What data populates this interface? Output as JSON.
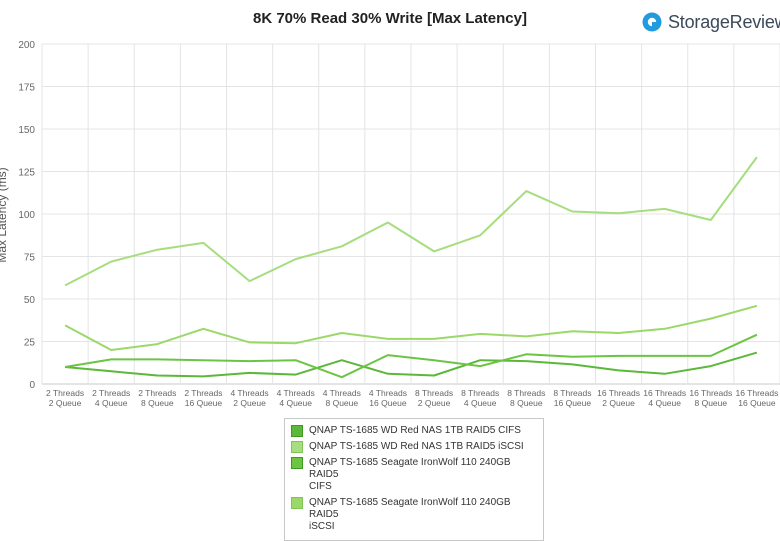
{
  "chart_data": {
    "type": "line",
    "title": "8K 70% Read 30% Write [Max Latency]",
    "ylabel": "Max Latency (ms)",
    "ylim": [
      0,
      200
    ],
    "yticks": [
      0,
      25,
      50,
      75,
      100,
      125,
      150,
      175,
      200
    ],
    "grid": true,
    "legend_position": "bottom",
    "categories": [
      [
        "2 Threads",
        "2 Queue"
      ],
      [
        "2 Threads",
        "4 Queue"
      ],
      [
        "2 Threads",
        "8 Queue"
      ],
      [
        "2 Threads",
        "16 Queue"
      ],
      [
        "4 Threads",
        "2 Queue"
      ],
      [
        "4 Threads",
        "4 Queue"
      ],
      [
        "4 Threads",
        "8 Queue"
      ],
      [
        "4 Threads",
        "16 Queue"
      ],
      [
        "8 Threads",
        "2 Queue"
      ],
      [
        "8 Threads",
        "4 Queue"
      ],
      [
        "8 Threads",
        "8 Queue"
      ],
      [
        "8 Threads",
        "16 Queue"
      ],
      [
        "16 Threads",
        "2 Queue"
      ],
      [
        "16 Threads",
        "4 Queue"
      ],
      [
        "16 Threads",
        "8 Queue"
      ],
      [
        "16 Threads",
        "16 Queue"
      ]
    ],
    "series": [
      {
        "name": "QNAP TS-1685 WD Red NAS 1TB RAID5 CIFS",
        "color": "#5cb83a",
        "values": [
          10,
          7.5,
          5,
          4.5,
          6.5,
          5.5,
          14,
          6,
          5,
          14,
          13.5,
          11.5,
          8,
          6,
          10.5,
          18.5
        ]
      },
      {
        "name": "QNAP TS-1685 WD Red NAS 1TB RAID5 iSCSI",
        "color": "#a6dd7e",
        "values": [
          58,
          72,
          79,
          83,
          60.5,
          73.5,
          81,
          95,
          78,
          87.5,
          113.5,
          101.5,
          100.5,
          103,
          96.5,
          133.5
        ]
      },
      {
        "name": "QNAP TS-1685 Seagate IronWolf 110 240GB RAID5 CIFS",
        "color": "#6cc443",
        "values": [
          10,
          14.5,
          14.5,
          14,
          13.5,
          14,
          4,
          17,
          14,
          10.5,
          17.5,
          16,
          16.5,
          16.5,
          16.5,
          29
        ]
      },
      {
        "name": "QNAP TS-1685 Seagate IronWolf 110 240GB RAID5 iSCSI",
        "color": "#9bd86a",
        "values": [
          34.5,
          20,
          23.5,
          32.5,
          24.5,
          24,
          30,
          26.5,
          26.5,
          29.5,
          28,
          31,
          30,
          32.5,
          38.5,
          46
        ]
      }
    ],
    "legend": [
      {
        "lines": [
          "QNAP TS-1685 WD Red NAS 1TB RAID5 CIFS"
        ]
      },
      {
        "lines": [
          "QNAP TS-1685 WD Red NAS 1TB RAID5 iSCSI"
        ]
      },
      {
        "lines": [
          "QNAP TS-1685 Seagate IronWolf 110 240GB RAID5",
          "CIFS"
        ]
      },
      {
        "lines": [
          "QNAP TS-1685 Seagate IronWolf 110 240GB RAID5",
          "iSCSI"
        ]
      }
    ]
  },
  "brand": {
    "text": "StorageReview",
    "logo_icon": "storagereview-logo-icon",
    "logo_color": "#1f9bde"
  }
}
